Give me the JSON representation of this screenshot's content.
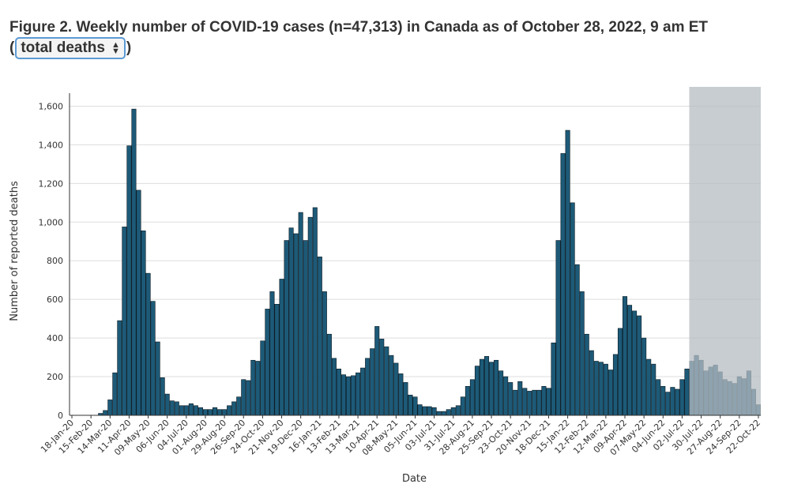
{
  "chart_data": {
    "type": "bar",
    "title": "Figure 2. Weekly number of COVID-19 cases (n=47,313) in Canada as of October 28, 2022, 9 am ET",
    "selector_prefix": "(",
    "selector_value": "total deaths",
    "selector_suffix": ")",
    "x_label": "Date",
    "y_label": "Number of reported deaths",
    "color": "#1d5a78",
    "grid": true,
    "shade_from_index": 130,
    "shade_color": "#b4bcc2",
    "categories": [
      "18-Jan-20",
      null,
      null,
      null,
      "15-Feb-20",
      null,
      null,
      null,
      "14-Mar-20",
      null,
      null,
      null,
      "11-Apr-20",
      null,
      null,
      null,
      "09-May-20",
      null,
      null,
      null,
      "06-Jun-20",
      null,
      null,
      null,
      "04-Jul-20",
      null,
      null,
      null,
      "01-Aug-20",
      null,
      null,
      null,
      "29-Aug-20",
      null,
      null,
      null,
      "26-Sep-20",
      null,
      null,
      null,
      "24-Oct-20",
      null,
      null,
      null,
      "21-Nov-20",
      null,
      null,
      null,
      "19-Dec-20",
      null,
      null,
      null,
      "16-Jan-21",
      null,
      null,
      null,
      "13-Feb-21",
      null,
      null,
      null,
      "13-Mar-21",
      null,
      null,
      null,
      "10-Apr-21",
      null,
      null,
      null,
      "08-May-21",
      null,
      null,
      null,
      "05-Jun-21",
      null,
      null,
      null,
      "03-Jul-21",
      null,
      null,
      null,
      "31-Jul-21",
      null,
      null,
      null,
      "28-Aug-21",
      null,
      null,
      null,
      "25-Sep-21",
      null,
      null,
      null,
      "23-Oct-21",
      null,
      null,
      null,
      "20-Nov-21",
      null,
      null,
      null,
      "18-Dec-21",
      null,
      null,
      null,
      "15-Jan-22",
      null,
      null,
      null,
      "12-Feb-22",
      null,
      null,
      null,
      "12-Mar-22",
      null,
      null,
      null,
      "09-Apr-22",
      null,
      null,
      null,
      "07-May-22",
      null,
      null,
      null,
      "04-Jun-22",
      null,
      null,
      null,
      "02-Jul-22",
      null,
      null,
      null,
      "30-Jul-22",
      null,
      null,
      null,
      "27-Aug-22",
      null,
      null,
      null,
      "24-Sep-22",
      null,
      null,
      null,
      "22-Oct-22"
    ],
    "values": [
      0,
      0,
      0,
      0,
      0,
      0,
      10,
      25,
      80,
      220,
      490,
      975,
      1395,
      1585,
      1165,
      955,
      735,
      590,
      380,
      195,
      110,
      75,
      70,
      50,
      50,
      60,
      50,
      40,
      30,
      30,
      40,
      30,
      30,
      50,
      70,
      95,
      185,
      180,
      285,
      280,
      385,
      550,
      640,
      575,
      705,
      905,
      970,
      940,
      1050,
      905,
      1025,
      1075,
      820,
      640,
      420,
      295,
      240,
      210,
      200,
      205,
      220,
      245,
      295,
      345,
      460,
      395,
      355,
      310,
      270,
      215,
      170,
      105,
      95,
      55,
      45,
      45,
      40,
      20,
      20,
      30,
      40,
      50,
      95,
      150,
      185,
      255,
      290,
      305,
      275,
      285,
      230,
      200,
      170,
      130,
      175,
      140,
      125,
      130,
      130,
      150,
      140,
      375,
      905,
      1355,
      1475,
      1100,
      780,
      640,
      420,
      335,
      280,
      275,
      265,
      235,
      315,
      450,
      615,
      570,
      540,
      515,
      400,
      290,
      265,
      185,
      150,
      120,
      145,
      135,
      185,
      240,
      280,
      310,
      285,
      230,
      250,
      260,
      225,
      185,
      175,
      165,
      200,
      190,
      230,
      135,
      55
    ],
    "ylim": [
      0,
      1700
    ],
    "yticks": [
      0,
      200,
      400,
      600,
      800,
      {
        "value": 1000,
        "label": "1,000"
      },
      {
        "value": 1200,
        "label": "1,200"
      },
      {
        "value": 1400,
        "label": "1,400"
      },
      {
        "value": 1600,
        "label": "1,600"
      }
    ]
  }
}
